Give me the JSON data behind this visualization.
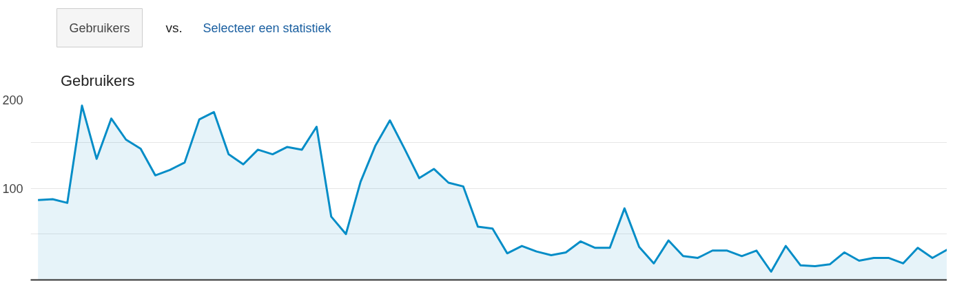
{
  "chart_data": {
    "type": "area",
    "annotations": [
      "Gebruikers",
      "vs.",
      "Selecteer een statistiek"
    ],
    "categories": [
      null,
      null,
      null,
      null,
      null,
      null,
      null,
      null,
      null,
      null,
      null,
      null,
      null,
      null,
      null,
      null,
      null,
      null,
      null,
      null,
      null,
      null,
      null,
      null,
      null,
      null,
      null,
      null,
      null,
      null,
      null,
      null,
      null,
      null,
      null,
      null,
      null,
      null,
      null,
      null,
      null,
      null,
      null,
      null,
      null,
      null,
      null,
      null,
      null,
      null,
      null,
      null,
      null,
      null,
      null,
      null,
      null,
      null,
      null,
      null,
      null,
      null,
      null
    ],
    "series": [
      {
        "name": "Gebruikers",
        "color": "#058dc7",
        "values": [
          87,
          88,
          84,
          190,
          132,
          176,
          153,
          143,
          114,
          120,
          128,
          175,
          183,
          137,
          126,
          142,
          137,
          145,
          142,
          167,
          69,
          50,
          107,
          146,
          174,
          143,
          111,
          121,
          106,
          102,
          58,
          56,
          29,
          37,
          31,
          27,
          30,
          42,
          35,
          35,
          78,
          36,
          18,
          43,
          26,
          24,
          32,
          32,
          26,
          32,
          9,
          37,
          16,
          15,
          17,
          30,
          21,
          24,
          24,
          18,
          35,
          24,
          33
        ]
      }
    ],
    "ylim": [
      0,
      200
    ],
    "yticks": [
      {
        "value": 50,
        "label": null
      },
      100,
      {
        "value": 150,
        "label": null
      },
      200
    ],
    "grid": "y",
    "legend": "top left",
    "tick_labels": "y"
  }
}
